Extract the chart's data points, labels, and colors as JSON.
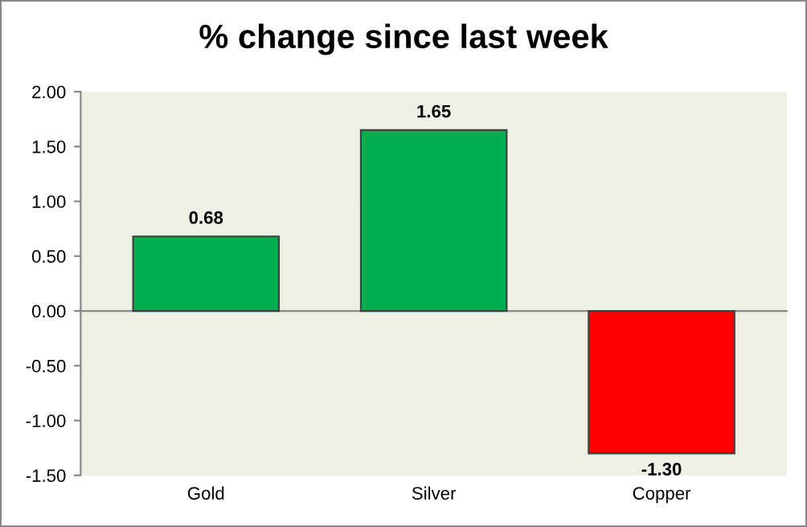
{
  "chart_data": {
    "type": "bar",
    "title": "% change since last week",
    "categories": [
      "Gold",
      "Silver",
      "Copper"
    ],
    "values": [
      0.68,
      1.65,
      -1.3
    ],
    "colors": [
      "#00b050",
      "#00b050",
      "#ff0000"
    ],
    "value_labels": [
      "0.68",
      "1.65",
      "-1.30"
    ],
    "ylim": [
      -1.5,
      2.0
    ],
    "yticks": [
      {
        "value": -1.5,
        "label": "-1.50"
      },
      {
        "value": -1.0,
        "label": "-1.00"
      },
      {
        "value": -0.5,
        "label": "-0.50"
      },
      {
        "value": 0,
        "label": "0.00"
      },
      {
        "value": 0.5,
        "label": "0.50"
      },
      {
        "value": 1.0,
        "label": "1.00"
      },
      {
        "value": 1.5,
        "label": "1.50"
      },
      {
        "value": 2.0,
        "label": "2.00"
      }
    ],
    "legend": false
  }
}
